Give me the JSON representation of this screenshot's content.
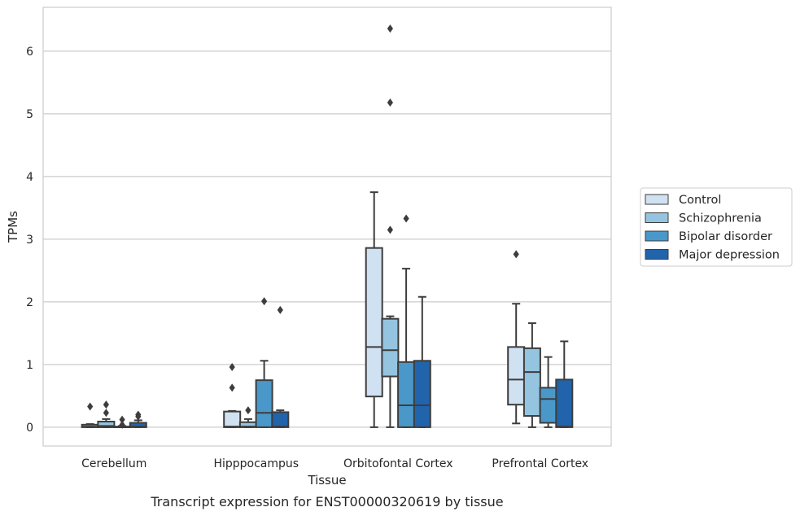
{
  "chart_data": {
    "type": "box",
    "caption": "Transcript expression for ENST00000320619 by tissue",
    "xlabel": "Tissue",
    "ylabel": "TPMs",
    "ylim": [
      -0.3,
      6.7
    ],
    "yticks": [
      0,
      1,
      2,
      3,
      4,
      5,
      6
    ],
    "grid": true,
    "legend_position": "right",
    "categories": [
      "Cerebellum",
      "Hipppocampus",
      "Orbitofontal Cortex",
      "Prefrontal Cortex"
    ],
    "series": [
      {
        "name": "Control",
        "color": "#d0e1f2",
        "boxes": [
          {
            "whislo": 0,
            "q1": 0,
            "med": 0.01,
            "q3": 0.04,
            "whishi": 0.05,
            "fliers": [
              0.33
            ]
          },
          {
            "whislo": 0,
            "q1": 0,
            "med": 0.01,
            "q3": 0.25,
            "whishi": 0.26,
            "fliers": [
              0.63,
              0.96
            ]
          },
          {
            "whislo": 0,
            "q1": 0.49,
            "med": 1.28,
            "q3": 2.86,
            "whishi": 3.75,
            "fliers": []
          },
          {
            "whislo": 0.06,
            "q1": 0.36,
            "med": 0.76,
            "q3": 1.28,
            "whishi": 1.97,
            "fliers": [
              2.76
            ]
          }
        ]
      },
      {
        "name": "Schizophrenia",
        "color": "#94c4df",
        "boxes": [
          {
            "whislo": 0,
            "q1": 0,
            "med": 0.02,
            "q3": 0.09,
            "whishi": 0.13,
            "fliers": [
              0.23,
              0.36
            ]
          },
          {
            "whislo": 0,
            "q1": 0,
            "med": 0.01,
            "q3": 0.08,
            "whishi": 0.13,
            "fliers": [
              0.27
            ]
          },
          {
            "whislo": 0,
            "q1": 0.81,
            "med": 1.23,
            "q3": 1.73,
            "whishi": 1.77,
            "fliers": [
              3.15,
              5.18,
              6.36
            ]
          },
          {
            "whislo": 0,
            "q1": 0.18,
            "med": 0.88,
            "q3": 1.26,
            "whishi": 1.66,
            "fliers": []
          }
        ]
      },
      {
        "name": "Bipolar disorder",
        "color": "#4a98c9",
        "boxes": [
          {
            "whislo": 0,
            "q1": 0,
            "med": 0,
            "q3": 0.01,
            "whishi": 0.02,
            "fliers": [
              0.04,
              0.12
            ]
          },
          {
            "whislo": 0,
            "q1": 0,
            "med": 0.23,
            "q3": 0.75,
            "whishi": 1.06,
            "fliers": [
              2.01
            ]
          },
          {
            "whislo": 0,
            "q1": 0,
            "med": 0.35,
            "q3": 1.04,
            "whishi": 2.53,
            "fliers": [
              3.33
            ]
          },
          {
            "whislo": 0,
            "q1": 0.07,
            "med": 0.45,
            "q3": 0.63,
            "whishi": 1.12,
            "fliers": []
          }
        ]
      },
      {
        "name": "Major depression",
        "color": "#2164ab",
        "boxes": [
          {
            "whislo": 0,
            "q1": 0,
            "med": 0.01,
            "q3": 0.07,
            "whishi": 0.11,
            "fliers": [
              0.17,
              0.2
            ]
          },
          {
            "whislo": 0,
            "q1": 0,
            "med": 0.01,
            "q3": 0.24,
            "whishi": 0.27,
            "fliers": [
              1.87
            ]
          },
          {
            "whislo": 0,
            "q1": 0,
            "med": 0.35,
            "q3": 1.06,
            "whishi": 2.08,
            "fliers": []
          },
          {
            "whislo": 0,
            "q1": 0,
            "med": 0.01,
            "q3": 0.76,
            "whishi": 1.37,
            "fliers": []
          }
        ]
      }
    ]
  }
}
